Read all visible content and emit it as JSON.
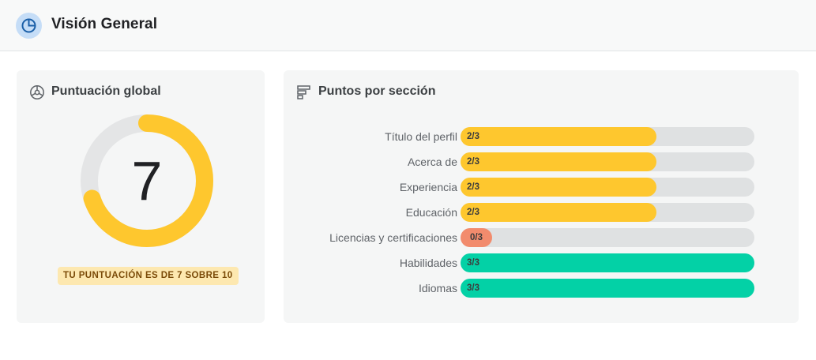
{
  "header": {
    "title": "Visión General",
    "icon": "pie-chart-icon",
    "icon_color": "#1a5fa8"
  },
  "global_score": {
    "title": "Puntuación global",
    "icon": "speedometer-icon",
    "value": "7",
    "score": 7,
    "max": 10,
    "badge": "TU PUNTUACIÓN ES DE 7 SOBRE 10",
    "ring_color": "#fec72e",
    "track_color": "#e4e5e6"
  },
  "sections": {
    "title": "Puntos por sección",
    "icon": "bar-list-icon",
    "colors": {
      "partial": "#fec72e",
      "zero": "#f28b6d",
      "full": "#03d1a6"
    },
    "items": [
      {
        "label": "Título del perfil",
        "score_text": "2/3",
        "score": 2,
        "max": 3,
        "status": "partial"
      },
      {
        "label": "Acerca de",
        "score_text": "2/3",
        "score": 2,
        "max": 3,
        "status": "partial"
      },
      {
        "label": "Experiencia",
        "score_text": "2/3",
        "score": 2,
        "max": 3,
        "status": "partial"
      },
      {
        "label": "Educación",
        "score_text": "2/3",
        "score": 2,
        "max": 3,
        "status": "partial"
      },
      {
        "label": "Licencias y certificaciones",
        "score_text": "0/3",
        "score": 0,
        "max": 3,
        "status": "zero"
      },
      {
        "label": "Habilidades",
        "score_text": "3/3",
        "score": 3,
        "max": 3,
        "status": "full"
      },
      {
        "label": "Idiomas",
        "score_text": "3/3",
        "score": 3,
        "max": 3,
        "status": "full"
      }
    ]
  }
}
